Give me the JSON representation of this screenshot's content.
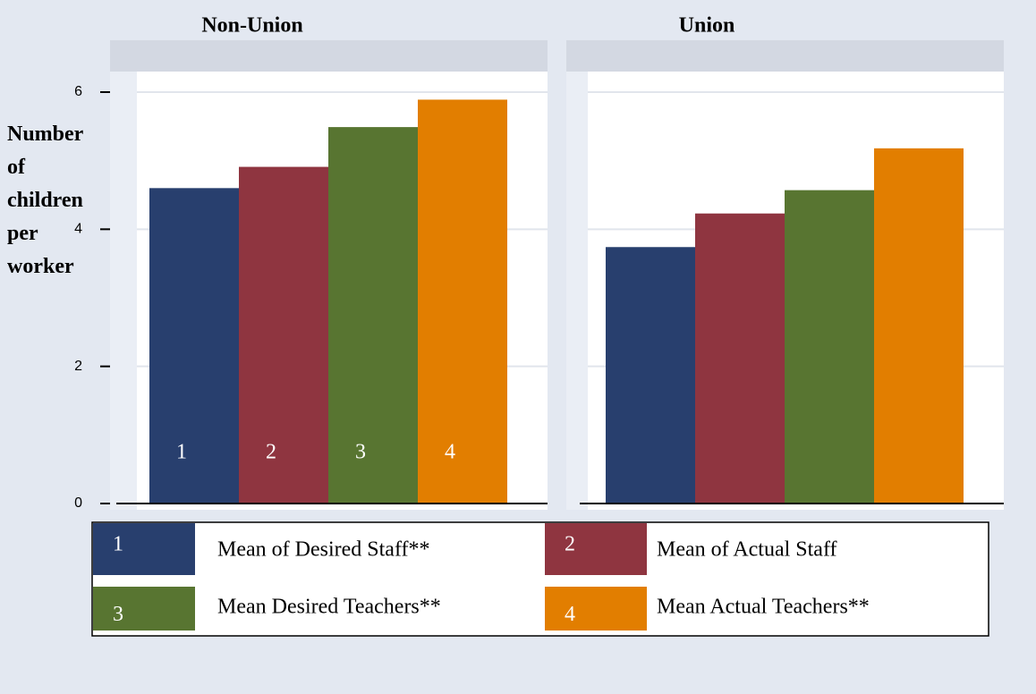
{
  "chart_data": {
    "type": "bar",
    "y_label": "Number of children per worker",
    "panels": [
      "Non-Union",
      "Union"
    ],
    "series": [
      {
        "name": "Mean of Desired Staff**",
        "key": "1",
        "color": "#283f6e",
        "values": [
          4.6,
          3.74
        ]
      },
      {
        "name": "Mean of Actual Staff",
        "key": "2",
        "color": "#8f3540",
        "values": [
          4.91,
          4.23
        ]
      },
      {
        "name": "Mean Desired Teachers**",
        "key": "3",
        "color": "#587531",
        "values": [
          5.49,
          4.57
        ]
      },
      {
        "name": "Mean Actual Teachers**",
        "key": "4",
        "color": "#e27e00",
        "values": [
          5.89,
          5.18
        ]
      }
    ],
    "ylim": [
      0,
      6.3
    ],
    "yticks": [
      0,
      2,
      4,
      6
    ],
    "grid": true
  }
}
